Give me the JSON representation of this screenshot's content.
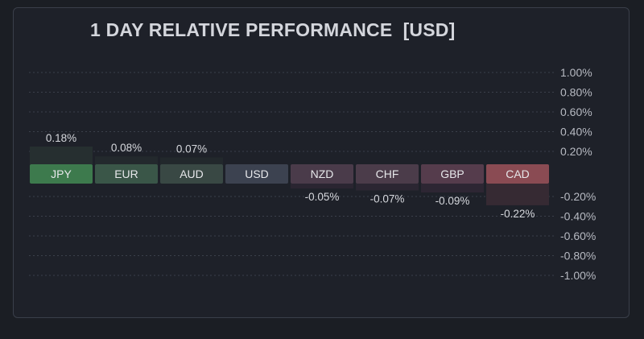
{
  "chart_data": {
    "type": "bar",
    "title": "1 DAY RELATIVE PERFORMANCE  [USD]",
    "categories": [
      "JPY",
      "EUR",
      "AUD",
      "USD",
      "NZD",
      "CHF",
      "GBP",
      "CAD"
    ],
    "values": [
      0.18,
      0.08,
      0.07,
      0,
      -0.05,
      -0.07,
      -0.09,
      -0.22
    ],
    "value_labels": [
      "0.18%",
      "0.08%",
      "0.07%",
      "",
      "-0.05%",
      "-0.07%",
      "-0.09%",
      "-0.22%"
    ],
    "ylim": [
      -1.0,
      1.0
    ],
    "yticks": [
      1.0,
      0.8,
      0.6,
      0.4,
      0.2,
      -0.2,
      -0.4,
      -0.6,
      -0.8,
      -1.0
    ],
    "ytick_labels": [
      "1.00%",
      "0.80%",
      "0.60%",
      "0.40%",
      "0.20%",
      "-0.20%",
      "-0.40%",
      "-0.60%",
      "-0.80%",
      "-1.00%"
    ],
    "grid": true,
    "colors": {
      "label_fill": [
        "#3d7a4d",
        "#3a5648",
        "#394844",
        "#3c4250",
        "#4a3b4a",
        "#4b3c4a",
        "#553c4c",
        "#8a4b53"
      ],
      "bar_fill": [
        "#262f30",
        "#23292d",
        "#22282c",
        "#1e2129",
        "#2a2531",
        "#2b2632",
        "#2d2633",
        "#362a33"
      ]
    }
  }
}
